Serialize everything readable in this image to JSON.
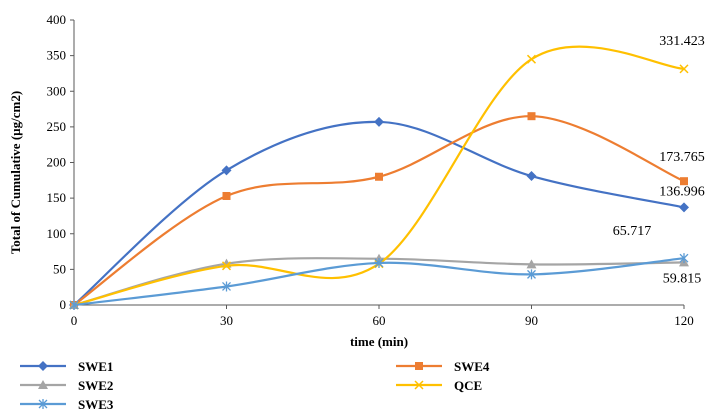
{
  "chart_data": {
    "type": "line",
    "xlabel": "time (min)",
    "ylabel": "Total of Cumulative (µg/cm2)",
    "x": [
      0,
      30,
      60,
      90,
      120
    ],
    "xlim": [
      0,
      120
    ],
    "ylim": [
      0,
      400
    ],
    "yticks": [
      0,
      50,
      100,
      150,
      200,
      250,
      300,
      350,
      400
    ],
    "grid": false,
    "legend_position": "bottom",
    "smooth": true,
    "series": [
      {
        "name": "SWE1",
        "color": "#4472C4",
        "marker": "diamond",
        "values": [
          0,
          189,
          257,
          181,
          136.996
        ]
      },
      {
        "name": "SWE4",
        "color": "#ED7D31",
        "marker": "square",
        "values": [
          0,
          153,
          180,
          265,
          173.765
        ]
      },
      {
        "name": "SWE2",
        "color": "#A5A5A5",
        "marker": "triangle",
        "values": [
          0,
          58,
          65,
          57,
          59.815
        ]
      },
      {
        "name": "QCE",
        "color": "#FFC000",
        "marker": "x",
        "values": [
          0,
          55,
          58,
          345,
          331.423
        ]
      },
      {
        "name": "SWE3",
        "color": "#5B9BD5",
        "marker": "star",
        "values": [
          0,
          26,
          59,
          43,
          65.717
        ]
      }
    ],
    "data_labels": [
      {
        "series": "QCE",
        "x": 120,
        "text": "331.423"
      },
      {
        "series": "SWE4",
        "x": 120,
        "text": "173.765"
      },
      {
        "series": "SWE1",
        "x": 120,
        "text": "136.996"
      },
      {
        "series": "SWE3",
        "x": 120,
        "text": "65.717"
      },
      {
        "series": "SWE2",
        "x": 120,
        "text": "59.815"
      }
    ]
  }
}
